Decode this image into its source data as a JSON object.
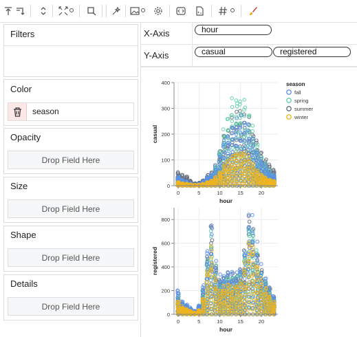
{
  "toolbar": {
    "icons": [
      "arrow-up-icon",
      "arrow-down-icon",
      "expand-vertical-icon",
      "expand-arrows-icon",
      "settings-gear-icon",
      "select-region-icon",
      "wand-icon",
      "image-icon",
      "settings-gear-icon",
      "gear-icon",
      "code-icon",
      "file-code-icon",
      "hash-icon",
      "settings-gear-icon",
      "brush-icon"
    ]
  },
  "left_panel": {
    "filters_label": "Filters",
    "color_label": "Color",
    "color_field": "season",
    "opacity_label": "Opacity",
    "size_label": "Size",
    "shape_label": "Shape",
    "details_label": "Details",
    "drop_placeholder": "Drop Field Here"
  },
  "encodings": {
    "x_label": "X-Axis",
    "x_field": "hour",
    "y_label": "Y-Axis",
    "y_fields": [
      "casual",
      "registered"
    ]
  },
  "colors": {
    "fall": "#5b8ee6",
    "spring": "#5ecfa9",
    "summer": "#5f6b7a",
    "winter": "#f0b51f"
  },
  "chart_data": [
    {
      "type": "scatter",
      "title": "",
      "xlabel": "hour",
      "ylabel": "casual",
      "xlim": [
        -1,
        24
      ],
      "ylim": [
        0,
        400
      ],
      "xticks": [
        0,
        5,
        10,
        15,
        20
      ],
      "yticks": [
        0,
        100,
        200,
        300,
        400
      ],
      "legend": {
        "title": "season",
        "position": "top-right",
        "entries": [
          "fall",
          "spring",
          "summer",
          "winter"
        ]
      },
      "series": [
        {
          "name": "fall",
          "x": [
            0,
            1,
            2,
            3,
            4,
            5,
            6,
            7,
            8,
            9,
            10,
            11,
            12,
            13,
            14,
            15,
            16,
            17,
            18,
            19,
            20,
            21,
            22,
            23
          ],
          "values": [
            35,
            25,
            18,
            10,
            5,
            8,
            18,
            35,
            48,
            75,
            130,
            180,
            220,
            255,
            270,
            275,
            265,
            240,
            190,
            150,
            110,
            85,
            60,
            45
          ]
        },
        {
          "name": "spring",
          "x": [
            0,
            1,
            2,
            3,
            4,
            5,
            6,
            7,
            8,
            9,
            10,
            11,
            12,
            13,
            14,
            15,
            16,
            17,
            18,
            19,
            20,
            21,
            22,
            23
          ],
          "values": [
            30,
            20,
            15,
            8,
            4,
            6,
            15,
            32,
            45,
            80,
            150,
            230,
            290,
            345,
            365,
            360,
            340,
            310,
            240,
            170,
            120,
            90,
            65,
            45
          ]
        },
        {
          "name": "summer",
          "x": [
            0,
            1,
            2,
            3,
            4,
            5,
            6,
            7,
            8,
            9,
            10,
            11,
            12,
            13,
            14,
            15,
            16,
            17,
            18,
            19,
            20,
            21,
            22,
            23
          ],
          "values": [
            55,
            45,
            40,
            22,
            10,
            12,
            22,
            45,
            55,
            85,
            150,
            210,
            250,
            280,
            300,
            300,
            290,
            270,
            220,
            180,
            140,
            110,
            90,
            70
          ]
        },
        {
          "name": "winter",
          "x": [
            0,
            1,
            2,
            3,
            4,
            5,
            6,
            7,
            8,
            9,
            10,
            11,
            12,
            13,
            14,
            15,
            16,
            17,
            18,
            19,
            20,
            21,
            22,
            23
          ],
          "values": [
            15,
            10,
            8,
            5,
            3,
            4,
            8,
            15,
            22,
            35,
            60,
            90,
            110,
            130,
            140,
            145,
            140,
            120,
            90,
            65,
            45,
            35,
            25,
            20
          ]
        }
      ]
    },
    {
      "type": "scatter",
      "title": "",
      "xlabel": "hour",
      "ylabel": "registered",
      "xlim": [
        -1,
        24
      ],
      "ylim": [
        0,
        900
      ],
      "xticks": [
        0,
        5,
        10,
        15,
        20
      ],
      "yticks": [
        0,
        200,
        400,
        600,
        800
      ],
      "series": [
        {
          "name": "fall",
          "x": [
            0,
            1,
            2,
            3,
            4,
            5,
            6,
            7,
            8,
            9,
            10,
            11,
            12,
            13,
            14,
            15,
            16,
            17,
            18,
            19,
            20,
            21,
            22,
            23
          ],
          "values": [
            230,
            120,
            90,
            60,
            30,
            80,
            250,
            600,
            800,
            480,
            350,
            360,
            400,
            380,
            380,
            420,
            600,
            890,
            860,
            620,
            430,
            330,
            250,
            160
          ]
        },
        {
          "name": "spring",
          "x": [
            0,
            1,
            2,
            3,
            4,
            5,
            6,
            7,
            8,
            9,
            10,
            11,
            12,
            13,
            14,
            15,
            16,
            17,
            18,
            19,
            20,
            21,
            22,
            23
          ],
          "values": [
            160,
            90,
            70,
            40,
            20,
            60,
            200,
            520,
            760,
            420,
            300,
            320,
            350,
            330,
            340,
            380,
            560,
            830,
            780,
            560,
            390,
            290,
            220,
            140
          ]
        },
        {
          "name": "summer",
          "x": [
            0,
            1,
            2,
            3,
            4,
            5,
            6,
            7,
            8,
            9,
            10,
            11,
            12,
            13,
            14,
            15,
            16,
            17,
            18,
            19,
            20,
            21,
            22,
            23
          ],
          "values": [
            180,
            100,
            80,
            50,
            25,
            70,
            220,
            560,
            790,
            450,
            320,
            340,
            380,
            360,
            360,
            400,
            580,
            860,
            820,
            590,
            410,
            310,
            240,
            150
          ]
        },
        {
          "name": "winter",
          "x": [
            0,
            1,
            2,
            3,
            4,
            5,
            6,
            7,
            8,
            9,
            10,
            11,
            12,
            13,
            14,
            15,
            16,
            17,
            18,
            19,
            20,
            21,
            22,
            23
          ],
          "values": [
            120,
            70,
            50,
            30,
            15,
            40,
            150,
            420,
            620,
            330,
            230,
            250,
            280,
            260,
            270,
            300,
            450,
            680,
            640,
            460,
            320,
            240,
            180,
            110
          ]
        }
      ]
    }
  ]
}
